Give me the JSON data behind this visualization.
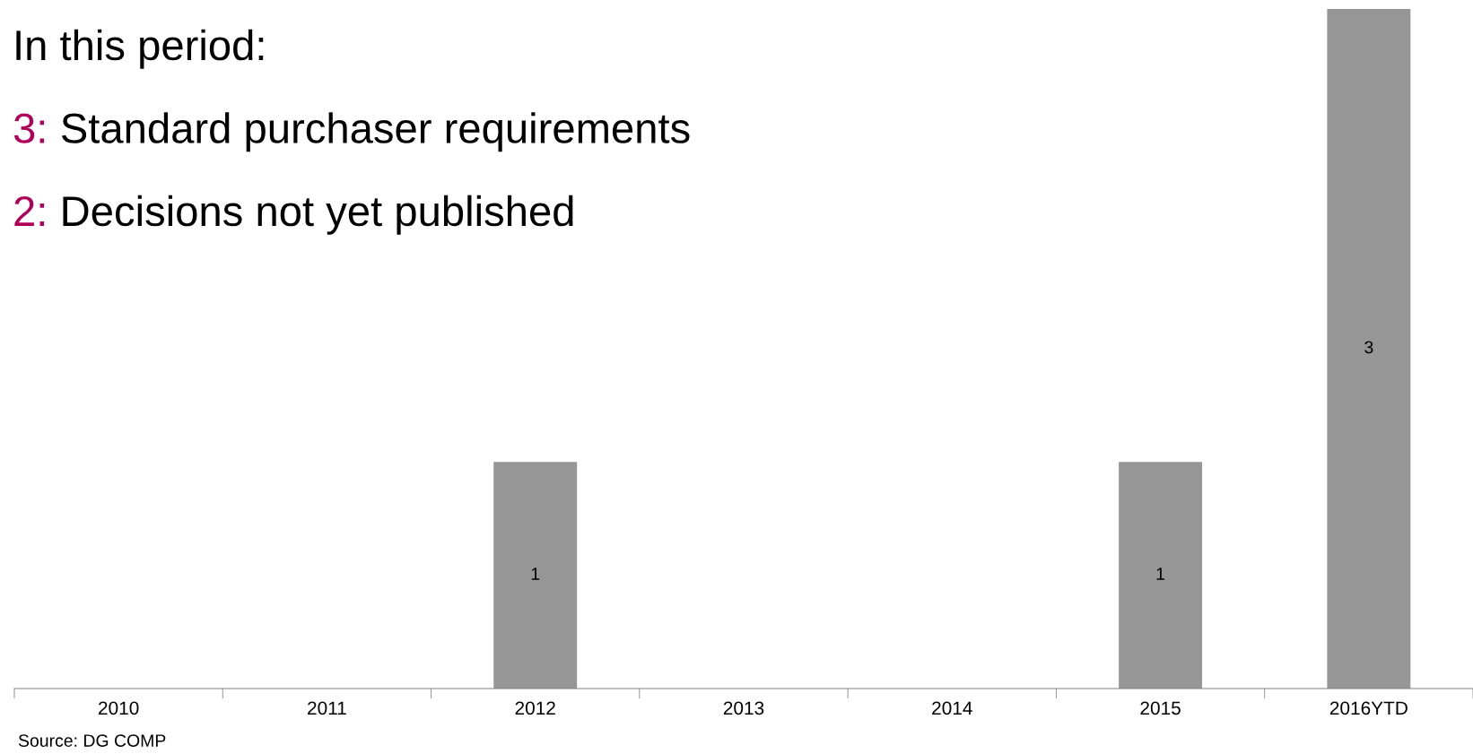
{
  "chart_data": {
    "type": "bar",
    "categories": [
      "2010",
      "2011",
      "2012",
      "2013",
      "2014",
      "2015",
      "2016YTD"
    ],
    "values": [
      0,
      0,
      1,
      0,
      0,
      1,
      3
    ],
    "value_labels": [
      null,
      null,
      "1",
      null,
      null,
      "1",
      "3"
    ],
    "color": "#969696",
    "annotations": [
      "In this period:",
      "3: Standard purchaser requirements",
      "2: Decisions not yet published",
      "Source: DG COMP"
    ],
    "grid": false,
    "legend": false
  }
}
